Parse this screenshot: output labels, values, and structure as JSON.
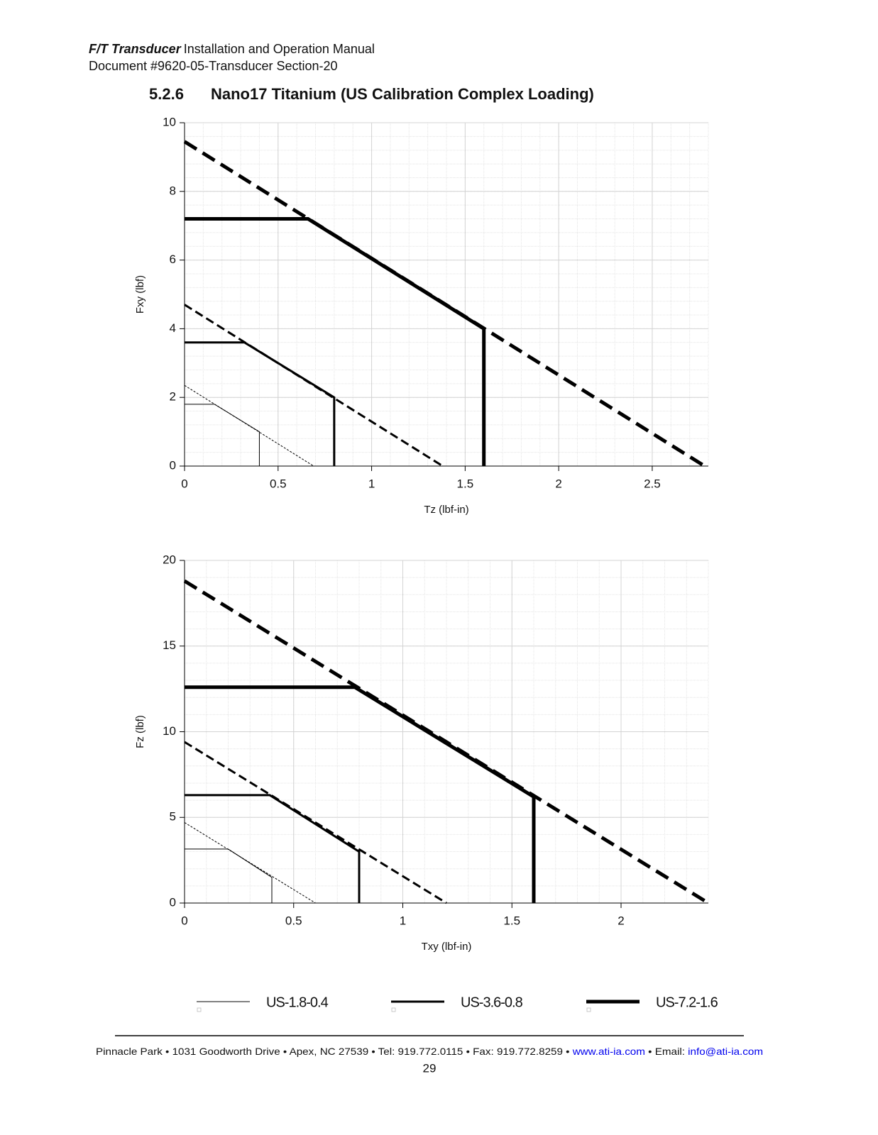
{
  "header": {
    "product": "F/T Transducer",
    "manual": "Installation and Operation Manual",
    "document": "Document #9620-05-Transducer Section-20"
  },
  "section": {
    "number": "5.2.6",
    "title": "Nano17 Titanium (US Calibration Complex Loading)"
  },
  "chart_data": [
    {
      "type": "line",
      "xlabel": "Tz (lbf-in)",
      "ylabel": "Fxy (lbf)",
      "xlim": [
        0,
        2.8
      ],
      "ylim": [
        0,
        10
      ],
      "xticks": [
        0,
        0.5,
        1,
        1.5,
        2,
        2.5
      ],
      "yticks": [
        0,
        2,
        4,
        6,
        8,
        10
      ],
      "grid": true,
      "series": [
        {
          "name": "US-1.8-0.4",
          "color": "#000000",
          "x": [
            0,
            0.16,
            0.4,
            0.4
          ],
          "values": [
            1.8,
            1.8,
            1.0,
            0
          ]
        },
        {
          "name": "US-3.6-0.8",
          "color": "#000000",
          "x": [
            0,
            0.32,
            0.8,
            0.8
          ],
          "values": [
            3.6,
            3.6,
            2.0,
            0
          ]
        },
        {
          "name": "US-7.2-1.6",
          "color": "#000000",
          "x": [
            0,
            0.66,
            1.6,
            1.6
          ],
          "values": [
            7.2,
            7.2,
            4.0,
            0
          ]
        },
        {
          "style": "dashed",
          "color": "#000000",
          "x": [
            0,
            0.69
          ],
          "values": [
            2.35,
            0
          ]
        },
        {
          "style": "dashed",
          "color": "#000000",
          "x": [
            0,
            1.38
          ],
          "values": [
            4.7,
            0
          ]
        },
        {
          "style": "dashed",
          "color": "#000000",
          "x": [
            0,
            2.78
          ],
          "values": [
            9.45,
            0
          ]
        }
      ]
    },
    {
      "type": "line",
      "xlabel": "Txy (lbf-in)",
      "ylabel": "Fz (lbf)",
      "xlim": [
        0,
        2.4
      ],
      "ylim": [
        0,
        20
      ],
      "xticks": [
        0,
        0.5,
        1,
        1.5,
        2
      ],
      "yticks": [
        0,
        5,
        10,
        15,
        20
      ],
      "grid": true,
      "series": [
        {
          "color": "#000000",
          "x": [
            0,
            0.2,
            0.4,
            0.4
          ],
          "values": [
            3.15,
            3.15,
            1.5,
            0
          ]
        },
        {
          "color": "#000000",
          "x": [
            0,
            0.39,
            0.8,
            0.8
          ],
          "values": [
            6.3,
            6.3,
            3.0,
            0
          ]
        },
        {
          "color": "#000000",
          "x": [
            0,
            0.78,
            1.6,
            1.6
          ],
          "values": [
            12.6,
            12.6,
            6.2,
            0
          ]
        },
        {
          "style": "dashed",
          "color": "#000000",
          "x": [
            0,
            0.6
          ],
          "values": [
            4.7,
            0
          ]
        },
        {
          "style": "dashed",
          "color": "#000000",
          "x": [
            0,
            1.2
          ],
          "values": [
            9.4,
            0
          ]
        },
        {
          "style": "dashed",
          "color": "#000000",
          "x": [
            0,
            2.4
          ],
          "values": [
            18.8,
            0
          ]
        }
      ]
    }
  ],
  "footer": {
    "address": "Pinnacle Park • 1031 Goodworth Drive • Apex, NC 27539 • Tel: 919.772.0115 • Fax: 919.772.8259 •",
    "website": "www.ati-ia.com",
    "email_label": "• Email:",
    "email": "info@ati-ia.com",
    "page": 29
  }
}
